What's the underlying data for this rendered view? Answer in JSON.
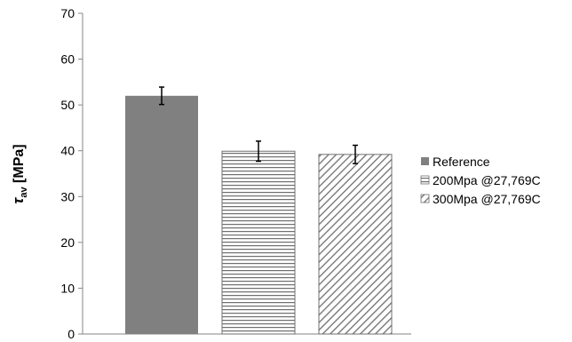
{
  "chart_data": {
    "type": "bar",
    "categories": [
      "",
      "",
      ""
    ],
    "series": [
      {
        "name": "Reference",
        "value": 52.0,
        "error": 1.9,
        "fill": "solid",
        "color": "#808080"
      },
      {
        "name": "200Mpa @27,769C",
        "value": 39.9,
        "error": 2.2,
        "fill": "horizontal-lines",
        "color": "#6f6f6f"
      },
      {
        "name": "300Mpa @27,769C",
        "value": 39.2,
        "error": 2.0,
        "fill": "diagonal-lines",
        "color": "#6f6f6f"
      }
    ],
    "ylabel": {
      "symbol": "τ",
      "subscript": "av",
      "unit": " [MPa]"
    },
    "ylim": [
      0,
      70
    ],
    "yticks": [
      "0",
      "10",
      "20",
      "30",
      "40",
      "50",
      "60",
      "70"
    ],
    "grid": false,
    "legend_position": "right"
  }
}
